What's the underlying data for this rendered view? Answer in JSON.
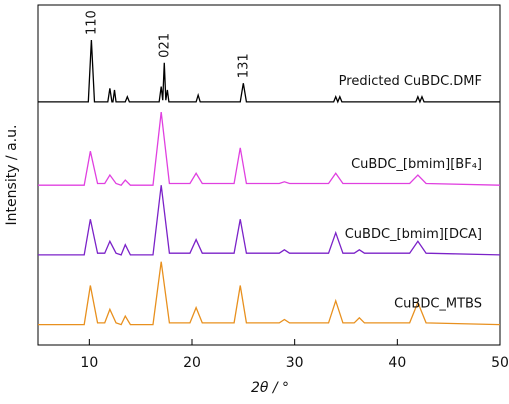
{
  "chart_data": {
    "type": "line",
    "xlabel": "2θ / °",
    "ylabel": "Intensity / a.u.",
    "xlim": [
      5,
      50
    ],
    "xticks": [
      10,
      20,
      30,
      40,
      50
    ],
    "ylim": [
      0,
      100
    ],
    "series": [
      {
        "name": "Predicted CuBDC.DMF",
        "color": "#000000",
        "x": [
          5,
          9.9,
          10.2,
          10.5,
          11.8,
          12.0,
          12.2,
          12.3,
          12.45,
          12.6,
          13.5,
          13.7,
          13.9,
          16.8,
          17.0,
          17.15,
          17.3,
          17.45,
          17.6,
          17.75,
          20.4,
          20.6,
          20.8,
          24.7,
          25.0,
          25.3,
          33.8,
          34.0,
          34.2,
          34.4,
          34.6,
          41.8,
          42.0,
          42.2,
          42.4,
          42.6,
          50
        ],
        "values": [
          71.5,
          71.5,
          89.7,
          71.5,
          71.5,
          75.5,
          71.5,
          71.5,
          75,
          71.5,
          71.5,
          73,
          71.5,
          71.5,
          76,
          72,
          83,
          72,
          75,
          71.5,
          71.5,
          73.5,
          71.5,
          71.5,
          77,
          71.5,
          71.5,
          73,
          71.5,
          73,
          71.5,
          71.5,
          73,
          71.5,
          73,
          71.5,
          71.5
        ]
      },
      {
        "name": "CuBDC_[bmim][BF₄]",
        "color": "#e040e0",
        "x": [
          5,
          9.5,
          10.1,
          10.8,
          11.5,
          12.0,
          12.6,
          13.1,
          13.5,
          14,
          16.2,
          17.0,
          17.8,
          19.8,
          20.4,
          21.0,
          24.1,
          24.7,
          25.3,
          28.5,
          29,
          29.5,
          33.3,
          34.0,
          34.7,
          35.8,
          36.3,
          36.8,
          41.2,
          42.0,
          42.8,
          50
        ],
        "values": [
          47,
          47,
          57,
          47.5,
          47.5,
          50,
          47.5,
          47,
          48.5,
          47,
          47,
          68.5,
          47.5,
          47.5,
          50.5,
          47.5,
          47.5,
          58,
          47.5,
          47.5,
          48,
          47.5,
          47.5,
          50.5,
          47.5,
          47.5,
          47.5,
          47.5,
          47.5,
          50,
          47.5,
          47
        ]
      },
      {
        "name": "CuBDC_[bmim][DCA]",
        "color": "#7b22c8",
        "x": [
          5,
          9.5,
          10.1,
          10.8,
          11.5,
          12.0,
          12.6,
          13.1,
          13.5,
          14,
          16.2,
          17.0,
          17.8,
          19.8,
          20.4,
          21.0,
          24.1,
          24.7,
          25.3,
          28.5,
          29,
          29.5,
          33.3,
          34.0,
          34.7,
          35.8,
          36.3,
          36.8,
          41.2,
          42.0,
          42.8,
          50
        ],
        "values": [
          26.5,
          26.5,
          37,
          27,
          27,
          30.5,
          27,
          26.5,
          29.5,
          26.5,
          26.5,
          47,
          27,
          27,
          31,
          27,
          27,
          37,
          27,
          27,
          28,
          27,
          27,
          33,
          27,
          27,
          28,
          27,
          27,
          30.5,
          27,
          26.5
        ]
      },
      {
        "name": "CuBDC_MTBS",
        "color": "#e8901e",
        "x": [
          5,
          9.5,
          10.1,
          10.8,
          11.5,
          12.0,
          12.6,
          13.1,
          13.5,
          14,
          16.2,
          17.0,
          17.8,
          19.8,
          20.4,
          21.0,
          24.1,
          24.7,
          25.3,
          28.5,
          29,
          29.5,
          33.3,
          34.0,
          34.7,
          35.8,
          36.3,
          36.8,
          41.2,
          42.0,
          42.8,
          50
        ],
        "values": [
          6,
          6,
          17.5,
          6.5,
          6.5,
          10.5,
          6.5,
          6,
          8.5,
          6,
          6,
          24.5,
          6.5,
          6.5,
          11,
          6.5,
          6.5,
          17.5,
          6.5,
          6.5,
          7.5,
          6.5,
          6.5,
          13,
          6.5,
          6.5,
          8,
          6.5,
          6.5,
          12.5,
          6.5,
          6
        ]
      }
    ],
    "annotations": [
      {
        "text": "110",
        "x": 10.2,
        "y": 89.7
      },
      {
        "text": "021",
        "x": 17.3,
        "y": 83
      },
      {
        "text": "131",
        "x": 25.0,
        "y": 77
      }
    ]
  }
}
